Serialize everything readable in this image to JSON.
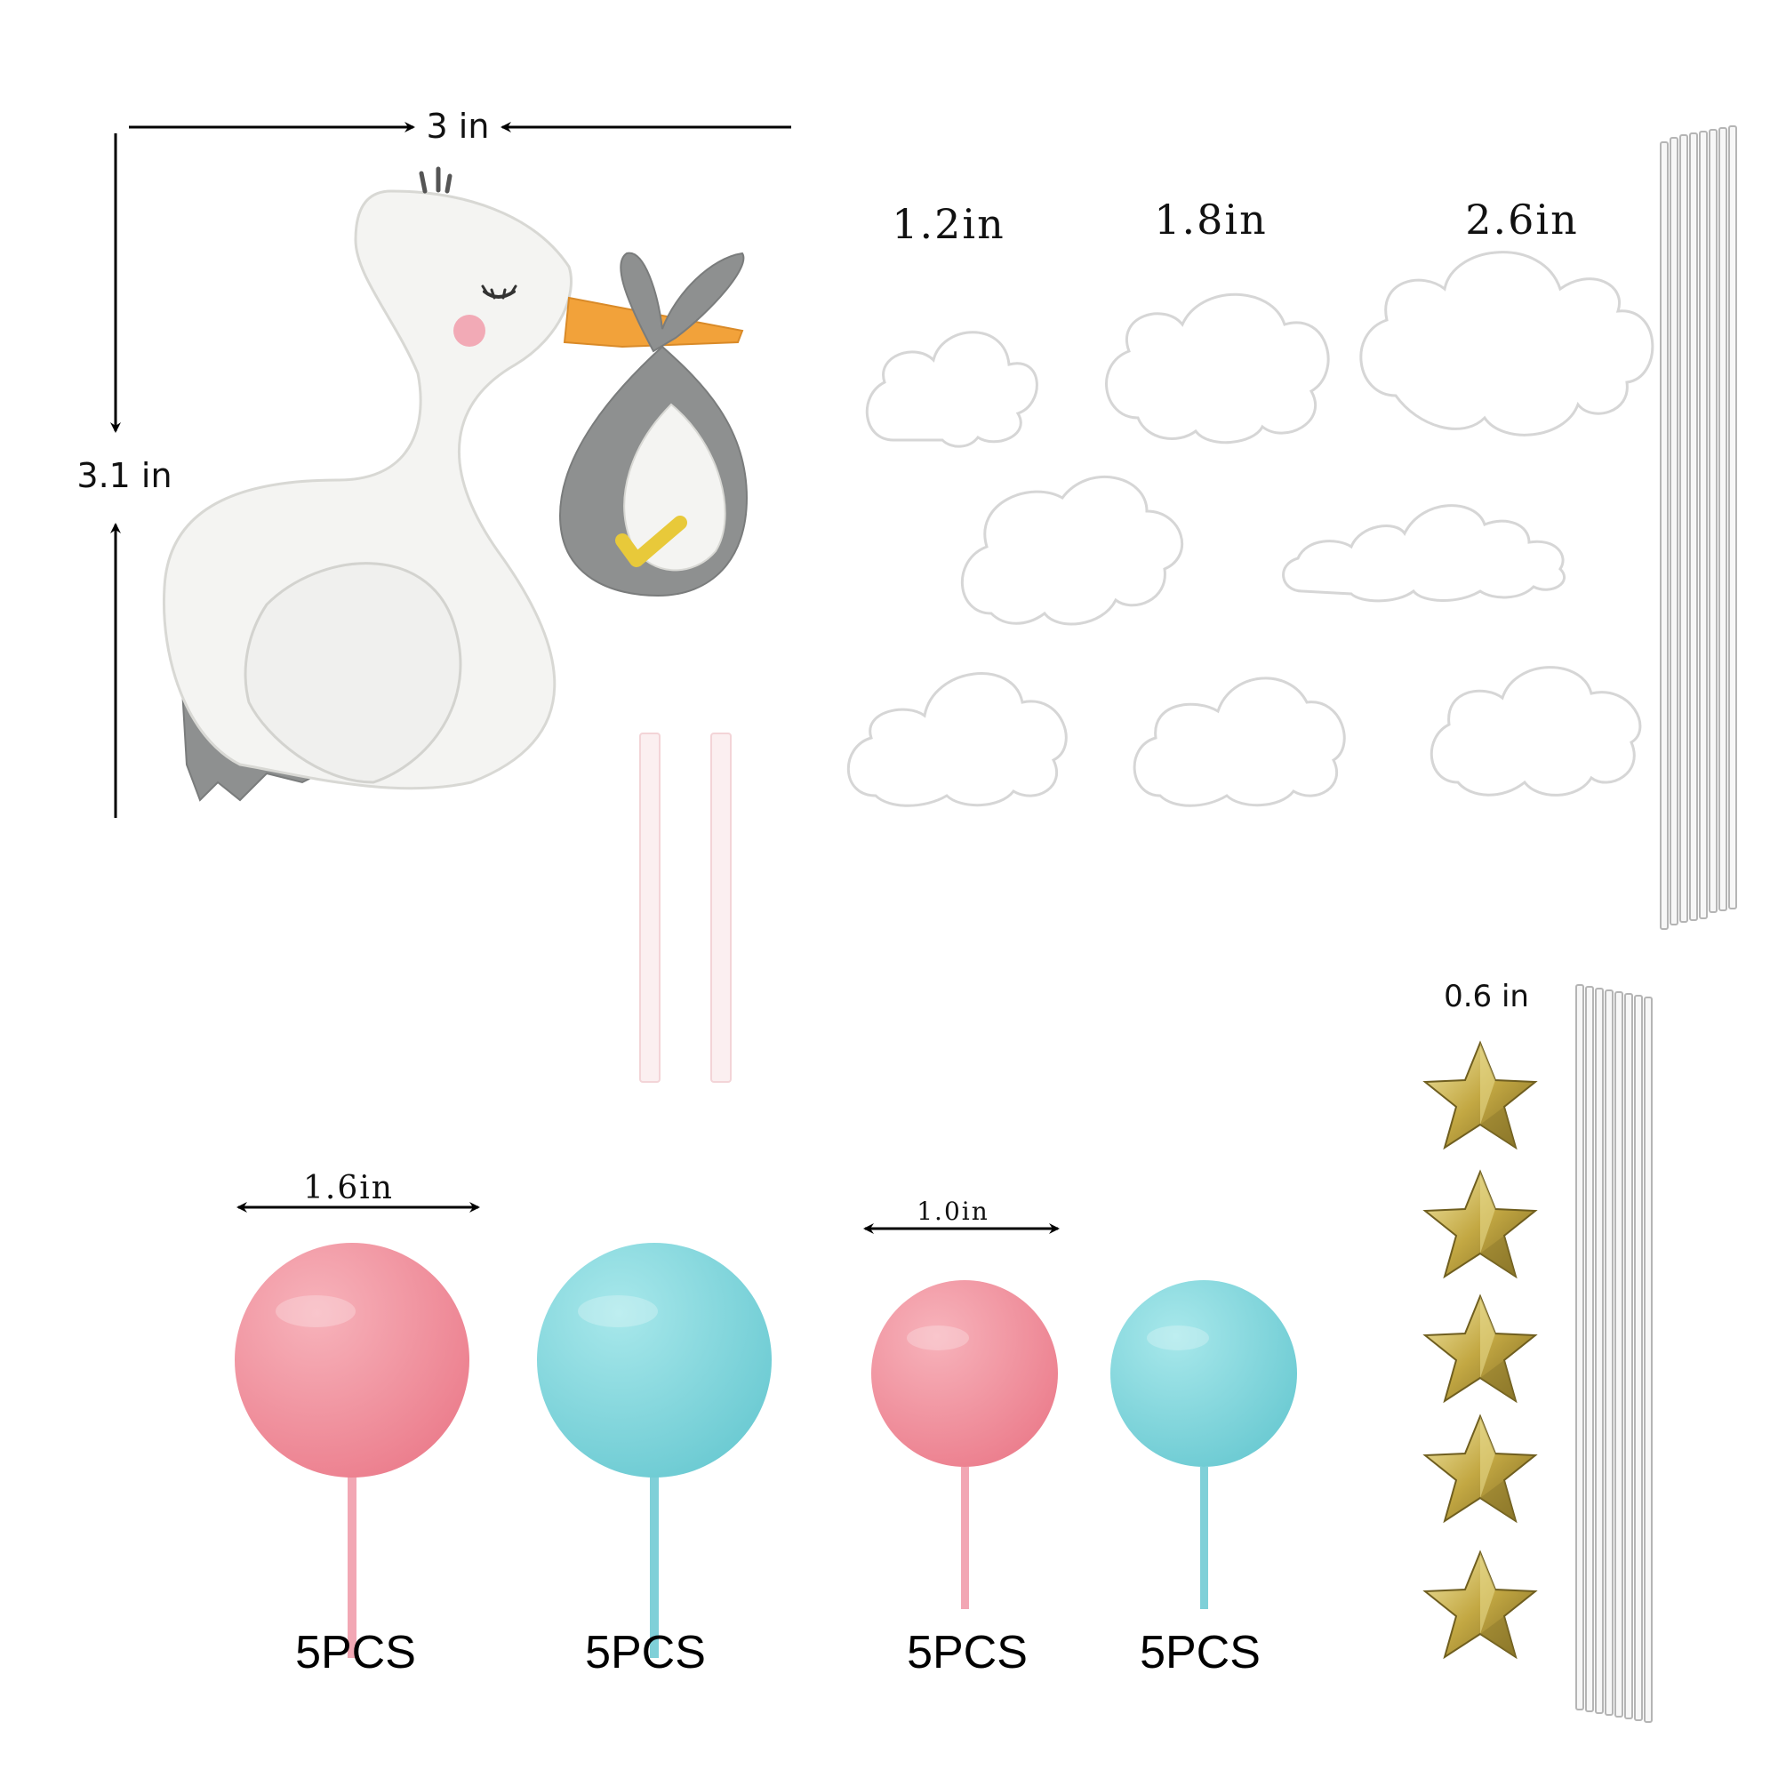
{
  "stork": {
    "width_label": "3 in",
    "height_label": "3.1 in"
  },
  "clouds": {
    "small_label": "1.2in",
    "medium_label": "1.8in",
    "large_label": "2.6in"
  },
  "stars": {
    "size_label": "0.6 in",
    "count": 5
  },
  "balls": {
    "large_label": "1.6in",
    "small_label": "1.0in",
    "qty_pink_large": "5PCS",
    "qty_blue_large": "5PCS",
    "qty_pink_small": "5PCS",
    "qty_blue_small": "5PCS"
  },
  "colors": {
    "pink": "#f2909e",
    "blue": "#7fd8dc",
    "stork_white": "#f4f4f2",
    "grey": "#8f9191",
    "beak": "#f2a23a",
    "gold": "#c9b24a"
  }
}
